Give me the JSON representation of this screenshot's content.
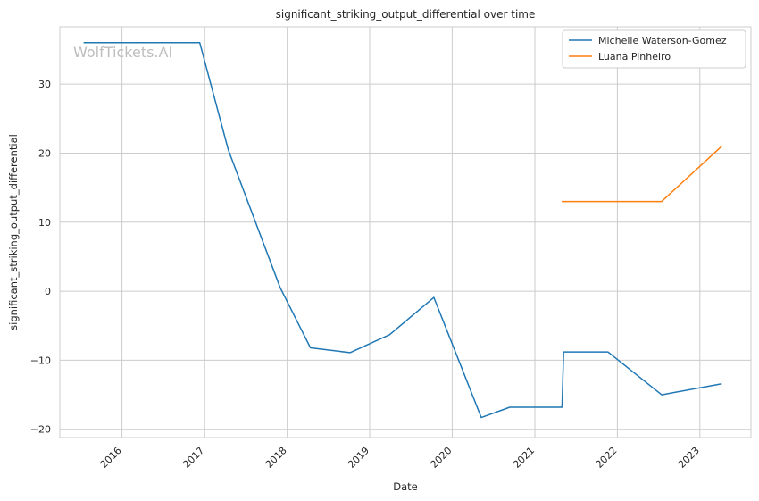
{
  "watermark": "WolfTickets.AI",
  "chart_data": {
    "type": "line",
    "title": "significant_striking_output_differential over time",
    "xlabel": "Date",
    "ylabel": "significant_striking_output_differential",
    "xlim": [
      "2015-04-01",
      "2023-08-15"
    ],
    "ylim": [
      -21.2,
      38.3
    ],
    "x_ticks": [
      "2016-01-01",
      "2017-01-01",
      "2018-01-01",
      "2019-01-01",
      "2020-01-01",
      "2021-01-01",
      "2022-01-01",
      "2023-01-01"
    ],
    "x_tick_labels": [
      "2016",
      "2017",
      "2018",
      "2019",
      "2020",
      "2021",
      "2022",
      "2023"
    ],
    "y_ticks": [
      -20,
      -10,
      0,
      10,
      20,
      30
    ],
    "y_tick_labels": [
      "−20",
      "−10",
      "0",
      "10",
      "20",
      "30"
    ],
    "grid": true,
    "legend_position": "top-right",
    "series": [
      {
        "name": "Michelle Waterson-Gomez",
        "color": "#1f77b4",
        "points": [
          {
            "x": "2015-07-15",
            "y": 36.0
          },
          {
            "x": "2016-12-10",
            "y": 36.0
          },
          {
            "x": "2017-04-15",
            "y": 20.5
          },
          {
            "x": "2017-12-01",
            "y": 0.5
          },
          {
            "x": "2018-04-14",
            "y": -8.2
          },
          {
            "x": "2018-10-06",
            "y": -8.9
          },
          {
            "x": "2019-03-30",
            "y": -6.3
          },
          {
            "x": "2019-10-12",
            "y": -0.9
          },
          {
            "x": "2020-05-09",
            "y": -18.3
          },
          {
            "x": "2020-09-12",
            "y": -16.8
          },
          {
            "x": "2021-05-01",
            "y": -16.8
          },
          {
            "x": "2021-05-08",
            "y": -8.8
          },
          {
            "x": "2021-11-20",
            "y": -8.8
          },
          {
            "x": "2022-07-16",
            "y": -15.0
          },
          {
            "x": "2023-04-08",
            "y": -13.4
          }
        ]
      },
      {
        "name": "Luana Pinheiro",
        "color": "#ff7f0e",
        "points": [
          {
            "x": "2021-04-30",
            "y": 13.0
          },
          {
            "x": "2022-07-16",
            "y": 13.0
          },
          {
            "x": "2023-04-08",
            "y": 21.0
          }
        ]
      }
    ]
  }
}
